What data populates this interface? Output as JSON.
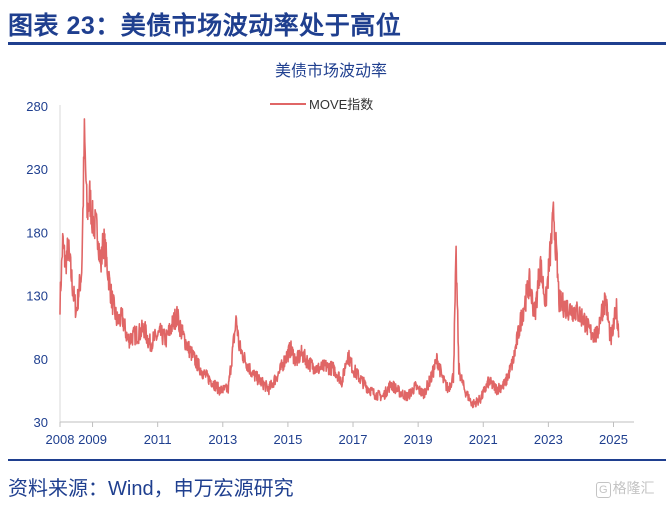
{
  "figure": {
    "title": "图表 23：美债市场波动率处于高位",
    "source": "资料来源：Wind，申万宏源研究",
    "watermark": "格隆汇",
    "watermark_logo": "G"
  },
  "chart_data": {
    "type": "line",
    "title": "美债市场波动率",
    "xlabel": "",
    "ylabel": "",
    "x_ticks": [
      "2008",
      "2009",
      "2011",
      "2013",
      "2015",
      "2017",
      "2019",
      "2021",
      "2023",
      "2025"
    ],
    "y_ticks": [
      "280",
      "230",
      "180",
      "130",
      "80",
      "30"
    ],
    "xlim": [
      "2008-01",
      "2025-03"
    ],
    "ylim": [
      30,
      280
    ],
    "grid": false,
    "legend": "top-center",
    "series": [
      {
        "name": "MOVE指数",
        "color": "#e06666",
        "points": [
          [
            "2008-01",
            125
          ],
          [
            "2008-02",
            172
          ],
          [
            "2008-03",
            155
          ],
          [
            "2008-04",
            168
          ],
          [
            "2008-06",
            130
          ],
          [
            "2008-07",
            118
          ],
          [
            "2008-09",
            150
          ],
          [
            "2008-10",
            255
          ],
          [
            "2008-11",
            195
          ],
          [
            "2008-12",
            208
          ],
          [
            "2009-01",
            190
          ],
          [
            "2009-03",
            180
          ],
          [
            "2009-04",
            152
          ],
          [
            "2009-05",
            175
          ],
          [
            "2009-06",
            160
          ],
          [
            "2009-08",
            128
          ],
          [
            "2009-10",
            110
          ],
          [
            "2009-12",
            112
          ],
          [
            "2010-02",
            95
          ],
          [
            "2010-04",
            98
          ],
          [
            "2010-06",
            100
          ],
          [
            "2010-08",
            104
          ],
          [
            "2010-10",
            92
          ],
          [
            "2010-12",
            96
          ],
          [
            "2011-02",
            100
          ],
          [
            "2011-04",
            95
          ],
          [
            "2011-06",
            105
          ],
          [
            "2011-08",
            115
          ],
          [
            "2011-10",
            100
          ],
          [
            "2011-12",
            90
          ],
          [
            "2012-03",
            78
          ],
          [
            "2012-06",
            68
          ],
          [
            "2012-09",
            62
          ],
          [
            "2012-12",
            55
          ],
          [
            "2013-03",
            56
          ],
          [
            "2013-06",
            112
          ],
          [
            "2013-07",
            90
          ],
          [
            "2013-09",
            80
          ],
          [
            "2013-12",
            68
          ],
          [
            "2014-03",
            62
          ],
          [
            "2014-06",
            56
          ],
          [
            "2014-10",
            70
          ],
          [
            "2014-12",
            80
          ],
          [
            "2015-02",
            88
          ],
          [
            "2015-04",
            78
          ],
          [
            "2015-06",
            84
          ],
          [
            "2015-09",
            76
          ],
          [
            "2015-12",
            72
          ],
          [
            "2016-03",
            74
          ],
          [
            "2016-06",
            72
          ],
          [
            "2016-09",
            62
          ],
          [
            "2016-11",
            84
          ],
          [
            "2017-01",
            72
          ],
          [
            "2017-03",
            66
          ],
          [
            "2017-06",
            58
          ],
          [
            "2017-09",
            52
          ],
          [
            "2017-12",
            50
          ],
          [
            "2018-03",
            60
          ],
          [
            "2018-06",
            54
          ],
          [
            "2018-09",
            50
          ],
          [
            "2018-12",
            58
          ],
          [
            "2019-03",
            52
          ],
          [
            "2019-06",
            66
          ],
          [
            "2019-08",
            80
          ],
          [
            "2019-10",
            64
          ],
          [
            "2019-12",
            56
          ],
          [
            "2020-02",
            66
          ],
          [
            "2020-03",
            160
          ],
          [
            "2020-04",
            72
          ],
          [
            "2020-06",
            56
          ],
          [
            "2020-09",
            44
          ],
          [
            "2020-12",
            48
          ],
          [
            "2021-03",
            62
          ],
          [
            "2021-06",
            56
          ],
          [
            "2021-09",
            60
          ],
          [
            "2021-12",
            78
          ],
          [
            "2022-03",
            112
          ],
          [
            "2022-06",
            140
          ],
          [
            "2022-08",
            115
          ],
          [
            "2022-10",
            155
          ],
          [
            "2022-12",
            124
          ],
          [
            "2023-03",
            195
          ],
          [
            "2023-05",
            125
          ],
          [
            "2023-08",
            120
          ],
          [
            "2023-11",
            118
          ],
          [
            "2024-02",
            112
          ],
          [
            "2024-04",
            102
          ],
          [
            "2024-07",
            98
          ],
          [
            "2024-08",
            112
          ],
          [
            "2024-10",
            128
          ],
          [
            "2024-12",
            95
          ],
          [
            "2025-01",
            104
          ],
          [
            "2025-02",
            122
          ],
          [
            "2025-03",
            98
          ]
        ]
      }
    ]
  }
}
